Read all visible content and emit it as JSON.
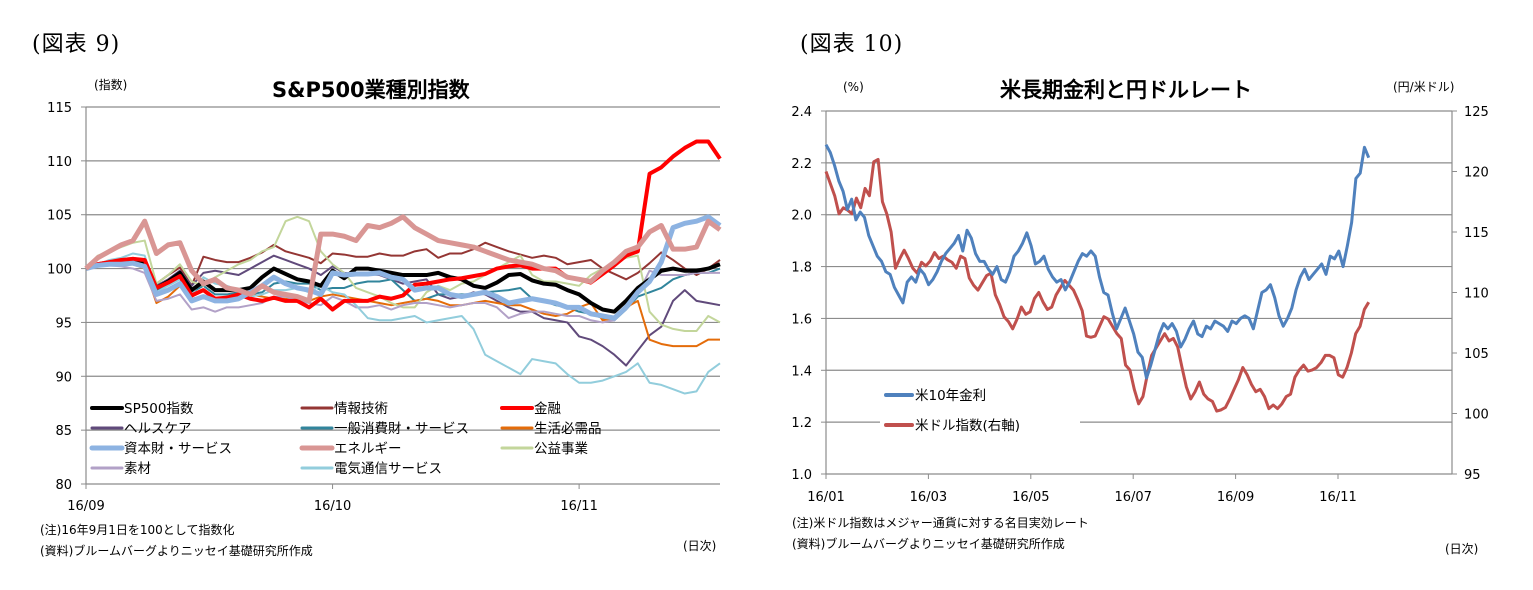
{
  "figures": [
    {
      "label": "(図表 9)",
      "unit_left": "(指数)",
      "title": "S&P500業種別指数",
      "note1": "(注)16年9月1日を100として指数化",
      "note2": "(資料)ブルームバーグよりニッセイ基礎研究所作成",
      "xunit": "(日次)"
    },
    {
      "label": "(図表 10)",
      "unit_left": "(%)",
      "unit_right": "(円/米ドル)",
      "title": "米長期金利と円ドルレート",
      "note1": "(注)米ドル指数はメジャー通貨に対する名目実効レート",
      "note2": "(資料)ブルームバーグよりニッセイ基礎研究所作成",
      "xunit": "(日次)"
    }
  ],
  "chart_data": [
    {
      "type": "line",
      "title": "S&P500業種別指数",
      "ylabel": "(指数)",
      "xlabel": "(日次)",
      "ylim": [
        80,
        115
      ],
      "yticks": [
        80,
        85,
        90,
        95,
        100,
        105,
        110,
        115
      ],
      "x_tick_labels": [
        "16/09",
        "16/10",
        "16/11"
      ],
      "x_tick_days": [
        0,
        21,
        42
      ],
      "x_range_days": [
        0,
        54
      ],
      "grid": true,
      "legend_position": "bottom-left",
      "series": [
        {
          "name": "SP500指数",
          "color": "#000000",
          "width": 4,
          "values": [
            100,
            100.3,
            100.5,
            100.6,
            100.7,
            100.6,
            98.2,
            98.8,
            99.6,
            98.0,
            98.8,
            98.0,
            98.0,
            98.0,
            98.2,
            99.2,
            100.0,
            99.5,
            99.0,
            98.8,
            98.4,
            99.8,
            99.1,
            100.0,
            100.0,
            99.8,
            99.6,
            99.4,
            99.4,
            99.4,
            99.6,
            99.2,
            99.0,
            98.4,
            98.2,
            98.7,
            99.4,
            99.5,
            98.9,
            98.6,
            98.5,
            98.0,
            97.6,
            96.8,
            96.2,
            96.0,
            97.0,
            98.2,
            99.0,
            99.8,
            100.0,
            99.8,
            99.8,
            100.0,
            100.4
          ]
        },
        {
          "name": "情報技術",
          "color": "#943634",
          "width": 2,
          "values": [
            100,
            100.5,
            100.7,
            100.8,
            101.0,
            100.8,
            98.6,
            99.4,
            100.1,
            98.4,
            101.1,
            100.8,
            100.6,
            100.6,
            101.0,
            101.5,
            102.2,
            101.6,
            101.3,
            101.0,
            100.5,
            101.4,
            101.3,
            101.1,
            101.1,
            101.4,
            101.2,
            101.2,
            101.6,
            101.8,
            101.0,
            101.4,
            101.4,
            101.8,
            102.4,
            102.0,
            101.6,
            101.3,
            101.0,
            101.2,
            101.0,
            100.4,
            100.6,
            100.8,
            100.0,
            99.5,
            99.0,
            99.6,
            100.5,
            101.5,
            100.8,
            100.0,
            99.4,
            100.0,
            100.8
          ]
        },
        {
          "name": "金融",
          "color": "#ff0000",
          "width": 4,
          "values": [
            100,
            100.4,
            100.6,
            100.8,
            100.9,
            100.8,
            98.2,
            98.7,
            99.3,
            97.5,
            98.0,
            97.2,
            97.3,
            97.6,
            97.2,
            97.0,
            97.3,
            97.0,
            97.0,
            96.4,
            97.2,
            96.2,
            97.0,
            97.0,
            97.0,
            97.4,
            97.2,
            97.5,
            98.5,
            98.6,
            98.8,
            99.0,
            99.1,
            99.3,
            99.5,
            100.0,
            100.2,
            100.3,
            100.0,
            100.0,
            100.0,
            99.2,
            99.0,
            98.7,
            99.5,
            100.3,
            101.2,
            101.6,
            108.8,
            109.4,
            110.4,
            111.2,
            111.8,
            111.8,
            110.2
          ]
        },
        {
          "name": "ヘルスケア",
          "color": "#604a7b",
          "width": 2,
          "values": [
            100,
            100.4,
            100.6,
            100.7,
            100.8,
            100.6,
            98.4,
            99.0,
            99.8,
            98.4,
            99.6,
            99.8,
            99.6,
            99.4,
            100.0,
            100.6,
            101.2,
            100.8,
            100.4,
            100.0,
            99.4,
            100.2,
            99.6,
            99.5,
            99.5,
            99.4,
            99.0,
            98.6,
            98.8,
            99.0,
            97.6,
            97.2,
            97.4,
            97.8,
            97.6,
            97.0,
            96.4,
            96.0,
            96.0,
            95.4,
            95.2,
            95.0,
            93.7,
            93.4,
            92.8,
            92.0,
            91.0,
            92.4,
            93.8,
            94.6,
            97.0,
            98.0,
            97.0,
            96.8,
            96.6
          ]
        },
        {
          "name": "一般消費財・サービス",
          "color": "#31859c",
          "width": 2,
          "values": [
            100,
            100.3,
            100.5,
            100.5,
            100.6,
            100.3,
            98.0,
            98.6,
            99.2,
            97.8,
            98.4,
            97.6,
            97.6,
            97.8,
            97.6,
            97.8,
            98.6,
            98.8,
            98.6,
            98.6,
            98.0,
            98.2,
            98.2,
            98.6,
            98.8,
            98.8,
            99.0,
            98.0,
            97.0,
            97.2,
            97.6,
            97.6,
            97.6,
            97.6,
            97.8,
            97.9,
            98.0,
            98.2,
            97.2,
            97.0,
            96.6,
            96.4,
            96.0,
            95.8,
            95.4,
            95.2,
            96.2,
            97.4,
            97.8,
            98.2,
            99.0,
            99.4,
            99.6,
            99.6,
            100.0
          ]
        },
        {
          "name": "生活必需品",
          "color": "#e46c0a",
          "width": 2,
          "values": [
            100,
            100.4,
            100.6,
            100.5,
            100.4,
            100.0,
            96.8,
            97.4,
            98.4,
            97.2,
            97.4,
            97.0,
            97.2,
            97.4,
            97.6,
            97.4,
            97.2,
            97.2,
            97.2,
            97.0,
            97.4,
            97.6,
            97.4,
            97.2,
            97.0,
            96.8,
            96.6,
            96.8,
            97.0,
            97.2,
            97.0,
            96.6,
            96.6,
            96.8,
            97.0,
            96.8,
            96.6,
            96.6,
            96.2,
            95.8,
            95.6,
            95.8,
            96.4,
            96.8,
            95.2,
            95.4,
            96.4,
            97.0,
            93.4,
            93.0,
            92.8,
            92.8,
            92.8,
            93.4,
            93.4
          ]
        },
        {
          "name": "資本財・サービス",
          "color": "#8db3e2",
          "width": 5,
          "values": [
            100,
            100.3,
            100.4,
            100.4,
            100.5,
            100.2,
            97.6,
            98.0,
            98.6,
            97.0,
            97.4,
            97.0,
            97.0,
            97.2,
            97.8,
            98.4,
            99.2,
            98.6,
            98.2,
            98.0,
            97.6,
            99.6,
            99.4,
            99.5,
            99.5,
            99.6,
            99.2,
            99.0,
            98.0,
            98.2,
            98.2,
            97.6,
            97.4,
            97.6,
            97.8,
            97.4,
            96.8,
            97.0,
            97.2,
            97.0,
            96.8,
            96.4,
            96.4,
            95.8,
            95.6,
            95.4,
            96.4,
            97.8,
            98.8,
            100.6,
            103.8,
            104.2,
            104.4,
            104.8,
            104.0
          ]
        },
        {
          "name": "エネルギー",
          "color": "#d99694",
          "width": 5,
          "values": [
            100,
            101.0,
            101.6,
            102.2,
            102.6,
            104.4,
            101.4,
            102.2,
            102.4,
            99.8,
            98.6,
            99.0,
            98.2,
            98.0,
            97.6,
            98.4,
            97.8,
            97.6,
            97.4,
            97.0,
            103.2,
            103.2,
            103.0,
            102.6,
            104.0,
            103.8,
            104.2,
            104.8,
            103.8,
            103.2,
            102.6,
            102.4,
            102.2,
            102.0,
            101.6,
            101.2,
            100.8,
            100.6,
            100.4,
            100.0,
            99.8,
            99.2,
            99.0,
            98.8,
            99.8,
            100.6,
            101.6,
            102.0,
            103.4,
            104.0,
            101.8,
            101.8,
            102.0,
            104.4,
            103.6
          ]
        },
        {
          "name": "公益事業",
          "color": "#c3d69b",
          "width": 2,
          "values": [
            100,
            101.2,
            101.6,
            102.0,
            102.4,
            102.6,
            98.6,
            99.4,
            100.4,
            98.8,
            98.4,
            99.2,
            99.8,
            100.4,
            100.8,
            101.6,
            102.0,
            104.4,
            104.8,
            104.4,
            101.6,
            100.4,
            99.6,
            98.2,
            97.8,
            97.4,
            96.8,
            96.4,
            96.4,
            97.8,
            98.4,
            98.0,
            98.6,
            98.8,
            99.4,
            100.0,
            100.6,
            101.2,
            99.4,
            98.8,
            98.8,
            98.6,
            98.4,
            99.4,
            100.0,
            100.6,
            101.0,
            101.2,
            96.0,
            94.8,
            94.4,
            94.2,
            94.2,
            95.6,
            95.0
          ]
        },
        {
          "name": "素材",
          "color": "#b2a1c7",
          "width": 2,
          "values": [
            100,
            100.2,
            100.3,
            100.2,
            100.0,
            99.6,
            97.0,
            97.2,
            97.6,
            96.2,
            96.4,
            96.0,
            96.4,
            96.4,
            96.6,
            96.8,
            97.4,
            97.4,
            97.0,
            96.8,
            96.6,
            97.4,
            97.0,
            96.4,
            96.4,
            96.6,
            96.2,
            96.6,
            96.8,
            96.8,
            96.6,
            96.4,
            96.6,
            96.8,
            96.8,
            96.4,
            95.4,
            95.8,
            96.0,
            96.0,
            95.8,
            95.6,
            95.6,
            95.2,
            95.0,
            95.2,
            96.4,
            97.6,
            99.8,
            99.4,
            99.4,
            99.4,
            99.6,
            99.6,
            99.6
          ]
        },
        {
          "name": "電気通信サービス",
          "color": "#92cddc",
          "width": 2,
          "values": [
            100,
            100.4,
            100.8,
            101.0,
            101.4,
            101.2,
            97.8,
            98.4,
            99.0,
            97.6,
            99.2,
            98.6,
            98.4,
            98.0,
            97.4,
            97.6,
            98.0,
            98.0,
            98.2,
            97.8,
            98.4,
            97.8,
            97.6,
            96.6,
            95.4,
            95.2,
            95.2,
            95.4,
            95.6,
            95.0,
            95.2,
            95.4,
            95.6,
            94.4,
            92.0,
            91.4,
            90.8,
            90.2,
            91.6,
            91.4,
            91.2,
            90.2,
            89.4,
            89.4,
            89.6,
            90.0,
            90.4,
            91.2,
            89.4,
            89.2,
            88.8,
            88.4,
            88.6,
            90.4,
            91.2
          ]
        }
      ]
    },
    {
      "type": "line",
      "title": "米長期金利と円ドルレート",
      "ylabel": "(%)",
      "y2label": "(円/米ドル)",
      "xlabel": "(日次)",
      "ylim": [
        1.0,
        2.4
      ],
      "y2lim": [
        95,
        125
      ],
      "yticks": [
        1.0,
        1.2,
        1.4,
        1.6,
        1.8,
        2.0,
        2.2,
        2.4
      ],
      "y2ticks": [
        95,
        100,
        105,
        110,
        115,
        120,
        125
      ],
      "x_tick_labels": [
        "16/01",
        "16/03",
        "16/05",
        "16/07",
        "16/09",
        "16/11"
      ],
      "x_tick_months": [
        0,
        2,
        4,
        6,
        8,
        10
      ],
      "x_range_months": [
        0,
        10.6
      ],
      "grid": true,
      "legend_position": "bottom-left",
      "series": [
        {
          "name": "米10年金利",
          "axis": "left",
          "color": "#4f81bd",
          "values": [
            2.27,
            2.24,
            2.19,
            2.13,
            2.09,
            2.02,
            2.06,
            1.98,
            2.01,
            1.99,
            1.92,
            1.88,
            1.84,
            1.82,
            1.78,
            1.77,
            1.72,
            1.69,
            1.66,
            1.74,
            1.76,
            1.74,
            1.79,
            1.77,
            1.73,
            1.75,
            1.78,
            1.82,
            1.85,
            1.87,
            1.89,
            1.92,
            1.86,
            1.94,
            1.91,
            1.85,
            1.82,
            1.82,
            1.79,
            1.77,
            1.8,
            1.75,
            1.74,
            1.78,
            1.84,
            1.86,
            1.89,
            1.93,
            1.88,
            1.81,
            1.82,
            1.84,
            1.79,
            1.76,
            1.74,
            1.75,
            1.71,
            1.74,
            1.78,
            1.82,
            1.85,
            1.84,
            1.86,
            1.84,
            1.76,
            1.7,
            1.69,
            1.62,
            1.56,
            1.6,
            1.64,
            1.59,
            1.54,
            1.47,
            1.45,
            1.37,
            1.42,
            1.48,
            1.54,
            1.58,
            1.56,
            1.58,
            1.55,
            1.49,
            1.52,
            1.56,
            1.59,
            1.54,
            1.53,
            1.57,
            1.56,
            1.59,
            1.58,
            1.57,
            1.55,
            1.59,
            1.58,
            1.6,
            1.61,
            1.6,
            1.56,
            1.63,
            1.7,
            1.71,
            1.73,
            1.68,
            1.61,
            1.57,
            1.6,
            1.64,
            1.71,
            1.76,
            1.79,
            1.75,
            1.77,
            1.79,
            1.81,
            1.77,
            1.84,
            1.83,
            1.86,
            1.8,
            1.88,
            1.97,
            2.14,
            2.16,
            2.26,
            2.22
          ]
        },
        {
          "name": "米ドル指数(右軸)",
          "axis": "right",
          "color": "#c0504d",
          "values": [
            120.0,
            119.0,
            118.0,
            116.5,
            117.0,
            116.8,
            116.5,
            117.8,
            117.0,
            118.6,
            118.0,
            120.8,
            121.0,
            117.5,
            116.5,
            115.0,
            112.0,
            112.8,
            113.5,
            112.8,
            112.0,
            111.6,
            112.5,
            112.2,
            112.6,
            113.3,
            112.8,
            113.0,
            112.7,
            112.5,
            112.0,
            113.0,
            112.8,
            111.2,
            110.6,
            110.2,
            110.8,
            111.4,
            111.6,
            109.8,
            109.0,
            108.0,
            107.6,
            107.0,
            107.8,
            108.8,
            108.2,
            108.4,
            109.5,
            110.0,
            109.2,
            108.6,
            108.8,
            109.8,
            110.4,
            111.0,
            110.6,
            110.2,
            109.4,
            108.5,
            106.4,
            106.3,
            106.4,
            107.2,
            108.0,
            107.8,
            107.2,
            106.6,
            106.2,
            104.0,
            103.6,
            102.0,
            100.8,
            101.4,
            103.2,
            104.8,
            105.4,
            106.0,
            106.6,
            106.0,
            106.2,
            105.5,
            103.8,
            102.2,
            101.2,
            101.8,
            102.6,
            101.6,
            101.2,
            101.0,
            100.2,
            100.3,
            100.5,
            101.2,
            102.0,
            102.8,
            103.8,
            103.2,
            102.4,
            101.8,
            102.0,
            101.4,
            100.4,
            100.7,
            100.4,
            100.8,
            101.4,
            101.6,
            103.0,
            103.6,
            104.0,
            103.5,
            103.6,
            103.8,
            104.2,
            104.8,
            104.8,
            104.6,
            103.2,
            103.0,
            103.8,
            105.0,
            106.6,
            107.2,
            108.6,
            109.2
          ]
        }
      ]
    }
  ]
}
